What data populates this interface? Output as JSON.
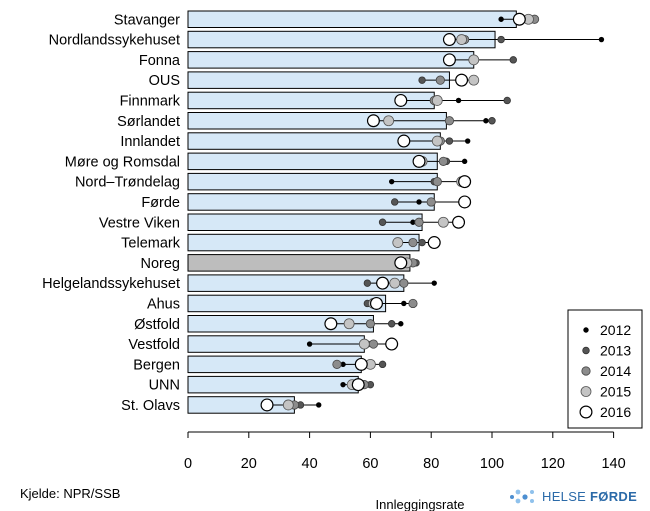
{
  "chart_data": {
    "type": "bar",
    "categories": [
      "Stavanger",
      "Nordlandssykehuset",
      "Fonna",
      "OUS",
      "Finnmark",
      "Sørlandet",
      "Innlandet",
      "Møre og Romsdal",
      "Nord–Trøndelag",
      "Førde",
      "Vestre Viken",
      "Telemark",
      "Noreg",
      "Helgelandssykehuset",
      "Ahus",
      "Østfold",
      "Vestfold",
      "Bergen",
      "UNN",
      "St. Olavs"
    ],
    "bar_values": [
      108,
      101,
      94,
      86,
      81,
      85,
      83,
      82,
      82,
      81,
      77,
      76,
      73,
      71,
      65,
      61,
      58,
      57,
      56,
      35
    ],
    "highlight_category": "Noreg",
    "series": [
      {
        "name": "2012",
        "values": [
          103,
          136,
          86,
          83,
          89,
          98,
          92,
          91,
          67,
          76,
          74,
          81,
          74,
          81,
          71,
          70,
          40,
          51,
          51,
          43
        ]
      },
      {
        "name": "2013",
        "values": [
          112,
          103,
          107,
          77,
          105,
          100,
          86,
          85,
          81,
          68,
          64,
          77,
          75,
          59,
          59,
          67,
          59,
          64,
          60,
          37
        ]
      },
      {
        "name": "2014",
        "values": [
          114,
          91,
          94,
          83,
          81,
          86,
          83,
          84,
          82,
          80,
          76,
          74,
          74,
          71,
          74,
          60,
          61,
          49,
          58,
          35
        ]
      },
      {
        "name": "2015",
        "values": [
          112,
          90,
          94,
          94,
          82,
          66,
          82,
          77,
          90,
          91,
          84,
          69,
          72,
          68,
          61,
          53,
          58,
          60,
          54,
          33
        ]
      },
      {
        "name": "2016",
        "values": [
          109,
          86,
          86,
          90,
          70,
          61,
          71,
          76,
          91,
          91,
          89,
          81,
          70,
          64,
          62,
          47,
          67,
          57,
          56,
          26
        ]
      }
    ],
    "x_ticks": [
      0,
      20,
      40,
      60,
      80,
      100,
      120,
      140
    ],
    "xlim": [
      0,
      145
    ],
    "xlabel": "Innleggingsrate",
    "legend_position": "bottom-right"
  },
  "footer": {
    "source": "Kjelde: NPR/SSB",
    "logo_prefix": "HELSE ",
    "logo_bold": "FØRDE"
  },
  "colors": {
    "bar": "#d6e8f7",
    "bar_highlight": "#bdbdbd",
    "s2012": "#000000",
    "s2013": "#555555",
    "s2014": "#8c8c8c",
    "s2015": "#c4c4c4",
    "s2016": "#ffffff",
    "logo": "#4d8fd1"
  }
}
